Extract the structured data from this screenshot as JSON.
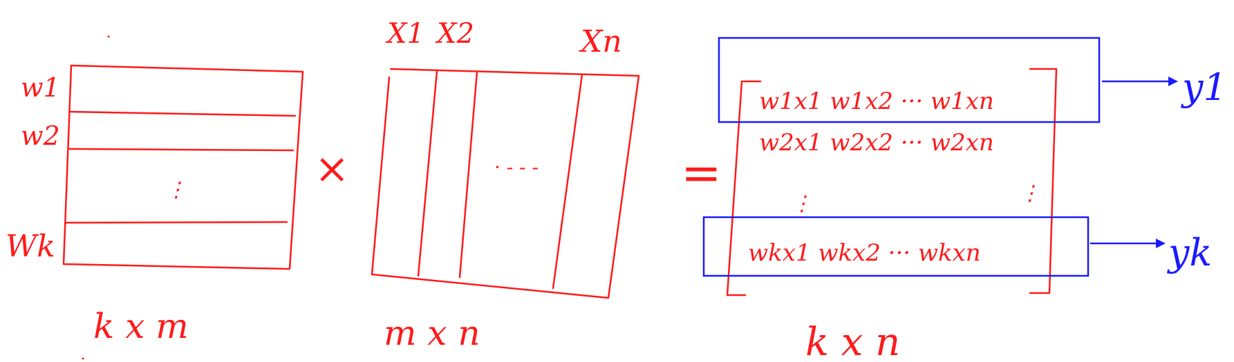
{
  "colors": {
    "ink_red": "#ff1a1a",
    "ink_blue": "#1a1aff",
    "background": "#ffffff"
  },
  "matrix_w": {
    "row_labels": [
      "w1",
      "w2",
      "⋮",
      "Wk"
    ],
    "dims": "k x m"
  },
  "multiply_sign": "×",
  "matrix_x": {
    "column_labels": [
      "X1",
      "X2",
      "Xn"
    ],
    "ellipsis": "· - - -",
    "dims": "m x n"
  },
  "equals_sign": "=",
  "matrix_result": {
    "rows": [
      "w1x1   w1x2  ···  w1xn",
      "w2x1   w2x2  ···  w2xn",
      "⋮",
      "wkx1   wkx2  ···  wkxn"
    ],
    "dims": "k x n"
  },
  "outputs": {
    "first": "y1",
    "last": "yk"
  }
}
